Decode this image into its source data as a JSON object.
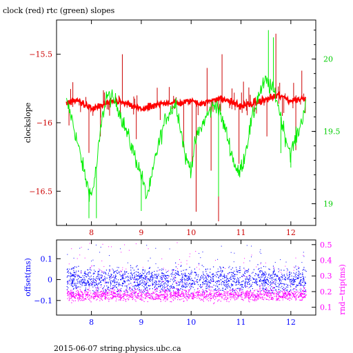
{
  "title": "clock (red) rtc (green) slopes",
  "footer": "2015-06-07 string.physics.ubc.ca",
  "colors": {
    "clock": "#ff0000",
    "clock_dark": "#cc0000",
    "rtc": "#00ee00",
    "offset": "#0000ff",
    "rndtrip": "#ff00ff",
    "axis": "#000000"
  },
  "chart_data": [
    {
      "type": "line",
      "title": "clock (red) rtc (green) slopes",
      "ylabel": "clockslope",
      "xlim": [
        7.3,
        12.5
      ],
      "ylim": [
        -16.75,
        -15.25
      ],
      "y2lim": [
        18.85,
        20.27
      ],
      "grid": false,
      "x_ticks": [
        8,
        9,
        10,
        11,
        12
      ],
      "x_tick_labels": [
        "8",
        "9",
        "10",
        "11",
        "12"
      ],
      "y_ticks": [
        -15.5,
        -16,
        -16.5
      ],
      "y_tick_labels": [
        "−15.5",
        "−16",
        "−16.5"
      ],
      "y2_ticks": [
        20,
        19.5,
        19
      ],
      "y2_tick_labels": [
        "20",
        "19.5",
        "19"
      ],
      "series": [
        {
          "axis": "left",
          "color": "#ff0000",
          "x": [
            7.5,
            7.75,
            8.0,
            8.25,
            8.5,
            8.75,
            9.0,
            9.25,
            9.5,
            9.75,
            10.0,
            10.25,
            10.5,
            10.75,
            11.0,
            11.25,
            11.5,
            11.75,
            12.0,
            12.3
          ],
          "y": [
            -15.85,
            -15.84,
            -15.9,
            -15.87,
            -15.84,
            -15.87,
            -15.9,
            -15.88,
            -15.85,
            -15.86,
            -15.84,
            -15.86,
            -15.82,
            -15.84,
            -15.88,
            -15.86,
            -15.83,
            -15.8,
            -15.84,
            -15.82
          ],
          "spikes": [
            {
              "x": 7.55,
              "y": -16.02
            },
            {
              "x": 7.95,
              "y": -16.22
            },
            {
              "x": 8.18,
              "y": -16.1
            },
            {
              "x": 8.62,
              "y": -15.5
            },
            {
              "x": 8.9,
              "y": -16.12
            },
            {
              "x": 9.38,
              "y": -15.98
            },
            {
              "x": 9.62,
              "y": -15.9
            },
            {
              "x": 9.85,
              "y": -16.18
            },
            {
              "x": 10.02,
              "y": -16.3
            },
            {
              "x": 10.1,
              "y": -16.65
            },
            {
              "x": 10.32,
              "y": -15.6
            },
            {
              "x": 10.4,
              "y": -16.35
            },
            {
              "x": 10.55,
              "y": -16.72
            },
            {
              "x": 10.62,
              "y": -15.5
            },
            {
              "x": 10.82,
              "y": -15.75
            },
            {
              "x": 10.96,
              "y": -16.3
            },
            {
              "x": 11.05,
              "y": -15.7
            },
            {
              "x": 11.52,
              "y": -16.1
            },
            {
              "x": 11.7,
              "y": -15.35
            },
            {
              "x": 12.1,
              "y": -16.2
            },
            {
              "x": 12.22,
              "y": -15.62
            }
          ]
        },
        {
          "axis": "right",
          "color": "#00ee00",
          "x": [
            7.5,
            7.6,
            7.7,
            7.8,
            7.9,
            8.0,
            8.1,
            8.2,
            8.3,
            8.5,
            8.75,
            9.0,
            9.1,
            9.2,
            9.3,
            9.5,
            9.7,
            9.8,
            9.9,
            10.0,
            10.1,
            10.3,
            10.5,
            10.7,
            10.85,
            10.95,
            11.05,
            11.2,
            11.35,
            11.5,
            11.6,
            11.7,
            11.8,
            11.9,
            12.0,
            12.1,
            12.2,
            12.3
          ],
          "y": [
            19.7,
            19.6,
            19.45,
            19.3,
            19.15,
            19.05,
            19.25,
            19.55,
            19.75,
            19.7,
            19.45,
            19.2,
            19.05,
            19.15,
            19.35,
            19.6,
            19.7,
            19.5,
            19.3,
            19.25,
            19.45,
            19.6,
            19.7,
            19.5,
            19.3,
            19.2,
            19.3,
            19.55,
            19.75,
            19.85,
            19.8,
            19.75,
            19.6,
            19.45,
            19.35,
            19.45,
            19.55,
            19.7
          ],
          "spikes": [
            {
              "x": 7.95,
              "y": 18.9
            },
            {
              "x": 8.1,
              "y": 18.9
            },
            {
              "x": 9.0,
              "y": 18.95
            },
            {
              "x": 10.55,
              "y": 19.05
            },
            {
              "x": 11.05,
              "y": 19.25
            },
            {
              "x": 11.55,
              "y": 20.2
            },
            {
              "x": 11.65,
              "y": 20.15
            },
            {
              "x": 11.8,
              "y": 19.35
            },
            {
              "x": 12.0,
              "y": 19.25
            }
          ]
        }
      ]
    },
    {
      "type": "scatter",
      "ylabel": "offset(ms)",
      "y2label": "rnd−trip(ms)",
      "xlim": [
        7.3,
        12.5
      ],
      "ylim": [
        -0.17,
        0.19
      ],
      "y2lim": [
        0.05,
        0.53
      ],
      "grid": false,
      "x_ticks": [
        8,
        9,
        10,
        11,
        12
      ],
      "x_tick_labels": [
        "8",
        "9",
        "10",
        "11",
        "12"
      ],
      "y_ticks": [
        0.1,
        0,
        -0.1
      ],
      "y_tick_labels": [
        "0.1",
        "0",
        "−0.1"
      ],
      "y2_ticks": [
        0.5,
        0.4,
        0.3,
        0.2,
        0.1
      ],
      "y2_tick_labels": [
        "0.5",
        "0.4",
        "0.3",
        "0.2",
        "0.1"
      ],
      "x_range": [
        7.5,
        12.3
      ],
      "series": [
        {
          "name": "offset",
          "axis": "left",
          "color": "#0000ff",
          "center": 0.0,
          "spread": 0.03,
          "outlier_range": [
            -0.05,
            0.17
          ]
        },
        {
          "name": "rnd-trip",
          "axis": "right",
          "color": "#ff00ff",
          "center": 0.18,
          "spread": 0.018,
          "outlier_range": [
            0.2,
            0.52
          ]
        }
      ]
    }
  ]
}
